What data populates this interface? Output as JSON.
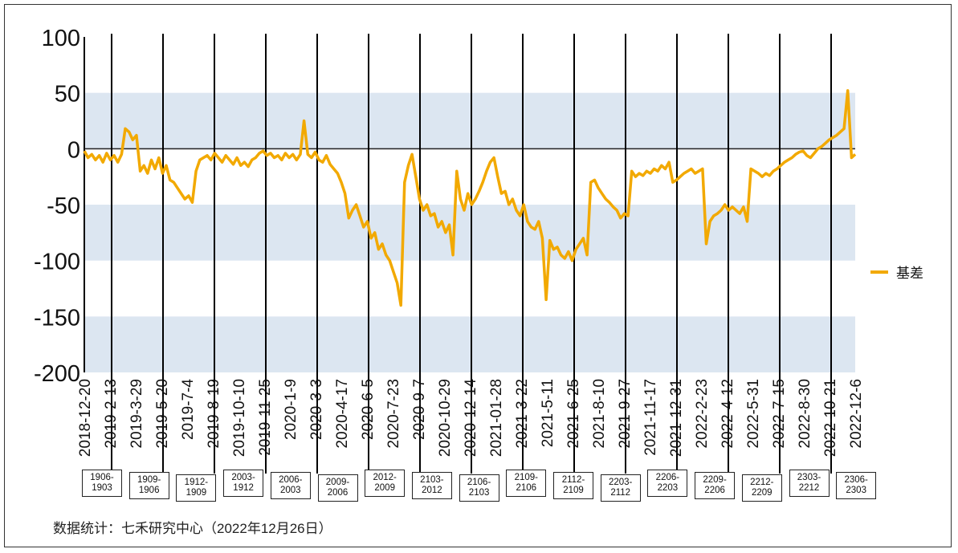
{
  "chart_data": {
    "type": "line",
    "ylim": [
      -200,
      100
    ],
    "yticks": [
      "100",
      "50",
      "0",
      "-50",
      "-100",
      "-150",
      "-200"
    ],
    "bands": [
      [
        50,
        0
      ],
      [
        -50,
        -100
      ],
      [
        -150,
        -200
      ]
    ],
    "band_color": "#dce6f1",
    "line_color": "#f2a900",
    "xticks": [
      "2018-12-20",
      "2019-2-13",
      "2019-3-29",
      "2019-5-20",
      "2019-7-4",
      "2019-8-19",
      "2019-10-10",
      "2019-11-25",
      "2020-1-9",
      "2020-3-3",
      "2020-4-17",
      "2020-6-5",
      "2020-7-23",
      "2020-9-7",
      "2020-10-29",
      "2020-12-14",
      "2021-01-28",
      "2021-3-22",
      "2021-5-11",
      "2021-6-25",
      "2021-8-10",
      "2021-9-27",
      "2021-11-17",
      "2021-12-31",
      "2022-2-23",
      "2022-4-12",
      "2022-5-31",
      "2022-7-15",
      "2022-8-30",
      "2022-10-21",
      "2022-12-6"
    ],
    "series": [
      {
        "name": "基差",
        "values": [
          -2,
          -8,
          -5,
          -10,
          -6,
          -12,
          -4,
          -10,
          -6,
          -12,
          -5,
          18,
          15,
          8,
          12,
          -20,
          -15,
          -22,
          -10,
          -18,
          -8,
          -22,
          -15,
          -28,
          -30,
          -35,
          -40,
          -45,
          -42,
          -48,
          -20,
          -10,
          -8,
          -6,
          -10,
          -4,
          -8,
          -12,
          -6,
          -10,
          -14,
          -8,
          -15,
          -12,
          -16,
          -10,
          -8,
          -4,
          -2,
          -6,
          -4,
          -8,
          -6,
          -10,
          -4,
          -8,
          -5,
          -10,
          -5,
          25,
          -5,
          -8,
          -3,
          -10,
          -12,
          -6,
          -14,
          -18,
          -22,
          -30,
          -40,
          -62,
          -55,
          -50,
          -60,
          -70,
          -65,
          -80,
          -75,
          -90,
          -85,
          -95,
          -100,
          -110,
          -120,
          -140,
          -30,
          -15,
          -5,
          -25,
          -45,
          -55,
          -50,
          -60,
          -58,
          -70,
          -65,
          -75,
          -68,
          -95,
          -20,
          -45,
          -55,
          -40,
          -50,
          -45,
          -38,
          -30,
          -20,
          -12,
          -8,
          -25,
          -40,
          -38,
          -50,
          -45,
          -55,
          -60,
          -50,
          -65,
          -70,
          -72,
          -65,
          -80,
          -135,
          -82,
          -90,
          -88,
          -95,
          -98,
          -92,
          -100,
          -90,
          -85,
          -80,
          -95,
          -30,
          -28,
          -35,
          -40,
          -45,
          -48,
          -52,
          -55,
          -62,
          -58,
          -60,
          -20,
          -25,
          -22,
          -24,
          -20,
          -22,
          -18,
          -20,
          -15,
          -18,
          -12,
          -30,
          -28,
          -25,
          -22,
          -20,
          -18,
          -22,
          -20,
          -18,
          -85,
          -65,
          -60,
          -58,
          -55,
          -50,
          -55,
          -52,
          -55,
          -58,
          -52,
          -65,
          -18,
          -20,
          -22,
          -25,
          -22,
          -24,
          -20,
          -18,
          -15,
          -12,
          -10,
          -8,
          -5,
          -3,
          -2,
          -6,
          -8,
          -4,
          0,
          2,
          5,
          8,
          10,
          12,
          15,
          18,
          52,
          -8,
          -5
        ]
      }
    ]
  },
  "contracts": [
    {
      "top": "1906-",
      "bottom": "1903"
    },
    {
      "top": "1909-",
      "bottom": "1906"
    },
    {
      "top": "1912-",
      "bottom": "1909"
    },
    {
      "top": "2003-",
      "bottom": "1912"
    },
    {
      "top": "2006-",
      "bottom": "2003"
    },
    {
      "top": "2009-",
      "bottom": "2006"
    },
    {
      "top": "2012-",
      "bottom": "2009"
    },
    {
      "top": "2103-",
      "bottom": "2012"
    },
    {
      "top": "2106-",
      "bottom": "2103"
    },
    {
      "top": "2109-",
      "bottom": "2106"
    },
    {
      "top": "2112-",
      "bottom": "2109"
    },
    {
      "top": "2203-",
      "bottom": "2112"
    },
    {
      "top": "2206-",
      "bottom": "2203"
    },
    {
      "top": "2209-",
      "bottom": "2206"
    },
    {
      "top": "2212-",
      "bottom": "2209"
    },
    {
      "top": "2303-",
      "bottom": "2212"
    },
    {
      "top": "2306-",
      "bottom": "2303"
    }
  ],
  "legend": {
    "label": "基差"
  },
  "footer": {
    "text": "数据统计：七禾研究中心（2022年12月26日）"
  }
}
